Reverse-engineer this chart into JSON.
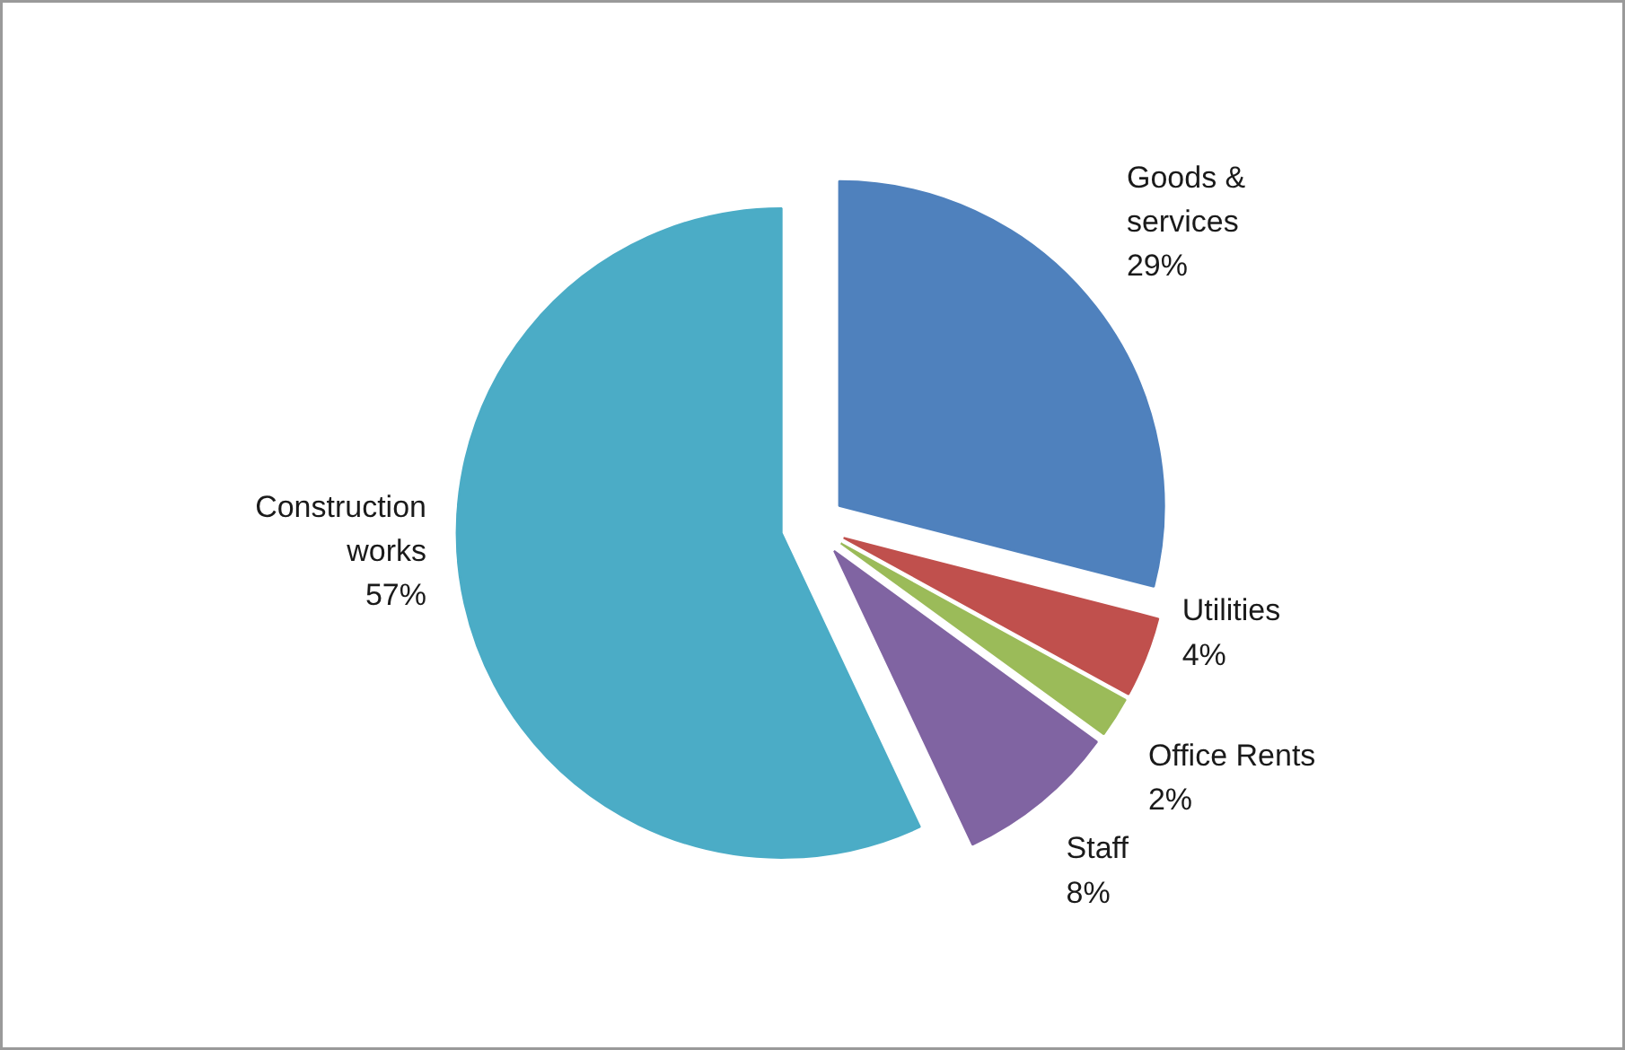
{
  "chart_data": {
    "type": "pie",
    "categories": [
      "Goods & services",
      "Utilities",
      "Office Rents",
      "Staff",
      "Construction works"
    ],
    "values": [
      29,
      4,
      2,
      8,
      57
    ],
    "colors": [
      "#4f81bd",
      "#c0504d",
      "#9bbb59",
      "#8064a2",
      "#4bacc6"
    ],
    "value_labels": [
      "29%",
      "4%",
      "2%",
      "8%",
      "57%"
    ],
    "legend": false
  }
}
